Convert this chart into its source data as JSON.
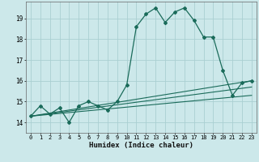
{
  "xlabel": "Humidex (Indice chaleur)",
  "background_color": "#cce8ea",
  "grid_color": "#aacfd2",
  "line_color": "#1a6b5a",
  "xlim": [
    -0.5,
    23.5
  ],
  "ylim": [
    13.5,
    19.8
  ],
  "yticks": [
    14,
    15,
    16,
    17,
    18,
    19
  ],
  "xticks": [
    0,
    1,
    2,
    3,
    4,
    5,
    6,
    7,
    8,
    9,
    10,
    11,
    12,
    13,
    14,
    15,
    16,
    17,
    18,
    19,
    20,
    21,
    22,
    23
  ],
  "line1_x": [
    0,
    1,
    2,
    3,
    4,
    5,
    6,
    7,
    8,
    9,
    10,
    11,
    12,
    13,
    14,
    15,
    16,
    17,
    18,
    19,
    20,
    21,
    22,
    23
  ],
  "line1_y": [
    14.3,
    14.8,
    14.4,
    14.7,
    14.0,
    14.8,
    15.0,
    14.8,
    14.6,
    15.0,
    15.8,
    18.6,
    19.2,
    19.5,
    18.8,
    19.3,
    19.5,
    18.9,
    18.1,
    18.1,
    16.5,
    15.3,
    15.9,
    16.0
  ],
  "line2_x": [
    0,
    23
  ],
  "line2_y": [
    14.3,
    16.0
  ],
  "line3_x": [
    0,
    23
  ],
  "line3_y": [
    14.3,
    15.7
  ],
  "line4_x": [
    0,
    23
  ],
  "line4_y": [
    14.3,
    15.3
  ]
}
